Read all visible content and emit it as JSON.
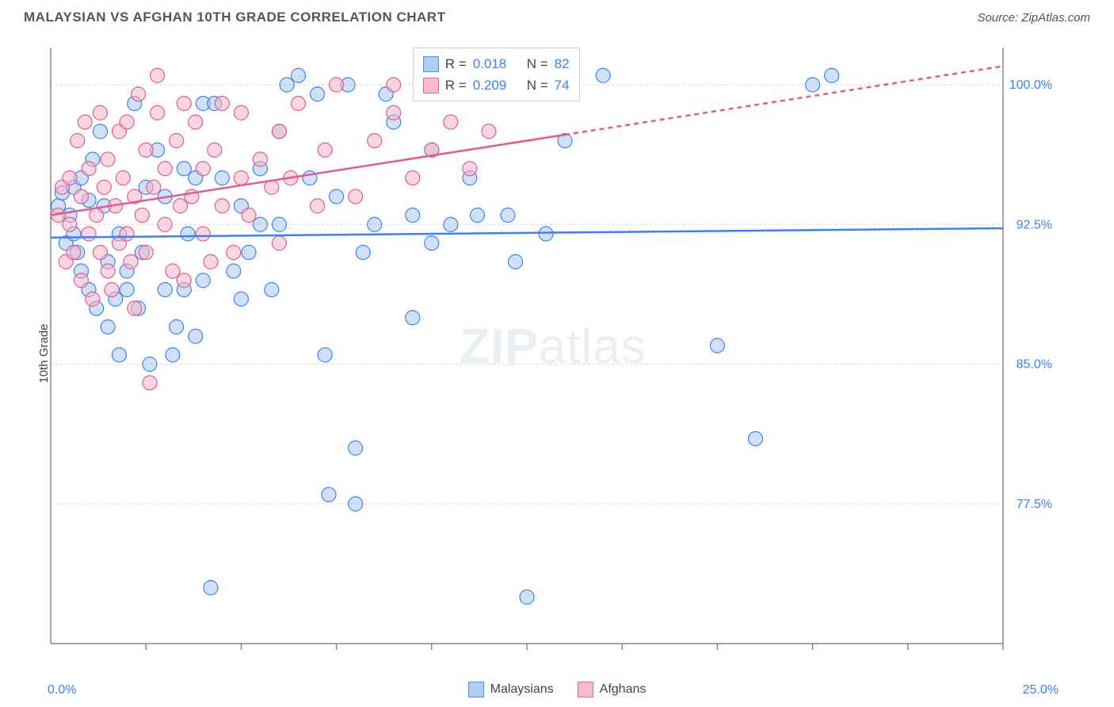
{
  "header": {
    "title": "MALAYSIAN VS AFGHAN 10TH GRADE CORRELATION CHART",
    "source": "Source: ZipAtlas.com"
  },
  "watermark": {
    "zip": "ZIP",
    "atlas": "atlas"
  },
  "ylabel": "10th Grade",
  "chart": {
    "type": "scatter",
    "xlim": [
      0,
      25
    ],
    "ylim": [
      70,
      102
    ],
    "xtick_start": "0.0%",
    "xtick_end": "25.0%",
    "xticks": [
      2.5,
      5,
      7.5,
      10,
      12.5,
      15,
      17.5,
      20,
      22.5,
      25
    ],
    "yticks": [
      {
        "v": 77.5,
        "label": "77.5%"
      },
      {
        "v": 85.0,
        "label": "85.0%"
      },
      {
        "v": 92.5,
        "label": "92.5%"
      },
      {
        "v": 100.0,
        "label": "100.0%"
      }
    ],
    "grid_color": "#d0d5db",
    "axis_color": "#888",
    "marker_radius": 9,
    "marker_opacity": 0.55,
    "line_width": 2.5,
    "series": [
      {
        "id": "malaysians",
        "label": "Malaysians",
        "fill": "#a7c7f0",
        "stroke": "#3b82f6",
        "trend": {
          "y_at_x0": 91.8,
          "y_at_x25": 92.3,
          "dash_from_x": null
        },
        "stats": {
          "R": "0.018",
          "N": "82"
        },
        "points": [
          [
            0.2,
            93.5
          ],
          [
            0.3,
            94.2
          ],
          [
            0.4,
            91.5
          ],
          [
            0.5,
            93.0
          ],
          [
            0.6,
            92.0
          ],
          [
            0.6,
            94.5
          ],
          [
            0.8,
            95.0
          ],
          [
            0.8,
            90.0
          ],
          [
            1.0,
            89.0
          ],
          [
            1.0,
            93.8
          ],
          [
            1.2,
            88.0
          ],
          [
            1.3,
            97.5
          ],
          [
            1.5,
            90.5
          ],
          [
            1.5,
            87.0
          ],
          [
            1.7,
            88.5
          ],
          [
            1.8,
            85.5
          ],
          [
            1.8,
            92.0
          ],
          [
            2.0,
            90.0
          ],
          [
            2.0,
            89.0
          ],
          [
            2.2,
            99.0
          ],
          [
            2.3,
            88.0
          ],
          [
            2.5,
            94.5
          ],
          [
            2.6,
            85.0
          ],
          [
            2.8,
            96.5
          ],
          [
            3.0,
            89.0
          ],
          [
            3.0,
            94.0
          ],
          [
            3.2,
            85.5
          ],
          [
            3.3,
            87.0
          ],
          [
            3.5,
            95.5
          ],
          [
            3.5,
            89.0
          ],
          [
            3.8,
            95.0
          ],
          [
            3.8,
            86.5
          ],
          [
            4.0,
            89.5
          ],
          [
            4.0,
            99.0
          ],
          [
            4.2,
            73.0
          ],
          [
            4.5,
            95.0
          ],
          [
            5.0,
            88.5
          ],
          [
            5.0,
            93.5
          ],
          [
            5.2,
            91.0
          ],
          [
            5.5,
            92.5
          ],
          [
            5.5,
            95.5
          ],
          [
            5.8,
            89.0
          ],
          [
            6.0,
            92.5
          ],
          [
            6.0,
            97.5
          ],
          [
            6.5,
            100.5
          ],
          [
            6.8,
            95.0
          ],
          [
            7.0,
            99.5
          ],
          [
            7.2,
            85.5
          ],
          [
            7.3,
            78.0
          ],
          [
            7.5,
            94.0
          ],
          [
            7.8,
            100.0
          ],
          [
            8.0,
            80.5
          ],
          [
            8.0,
            77.5
          ],
          [
            8.2,
            91.0
          ],
          [
            8.5,
            92.5
          ],
          [
            8.8,
            99.5
          ],
          [
            9.0,
            98.0
          ],
          [
            9.5,
            93.0
          ],
          [
            9.5,
            87.5
          ],
          [
            10.0,
            96.5
          ],
          [
            10.0,
            91.5
          ],
          [
            10.5,
            92.5
          ],
          [
            11.0,
            95.0
          ],
          [
            11.2,
            93.0
          ],
          [
            12.0,
            93.0
          ],
          [
            12.2,
            90.5
          ],
          [
            12.5,
            72.5
          ],
          [
            13.0,
            92.0
          ],
          [
            13.5,
            97.0
          ],
          [
            14.5,
            100.5
          ],
          [
            17.5,
            86.0
          ],
          [
            18.5,
            81.0
          ],
          [
            20.0,
            100.0
          ],
          [
            20.5,
            100.5
          ],
          [
            1.1,
            96.0
          ],
          [
            2.4,
            91.0
          ],
          [
            4.3,
            99.0
          ],
          [
            6.2,
            100.0
          ],
          [
            0.7,
            91.0
          ],
          [
            1.4,
            93.5
          ],
          [
            3.6,
            92.0
          ],
          [
            4.8,
            90.0
          ]
        ]
      },
      {
        "id": "afghans",
        "label": "Afghans",
        "fill": "#f5b5c6",
        "stroke": "#e55a8a",
        "trend": {
          "y_at_x0": 93.0,
          "y_at_x25": 101.0,
          "dash_from_x": 13.5
        },
        "stats": {
          "R": "0.209",
          "N": "74"
        },
        "points": [
          [
            0.2,
            93.0
          ],
          [
            0.3,
            94.5
          ],
          [
            0.4,
            90.5
          ],
          [
            0.5,
            92.5
          ],
          [
            0.5,
            95.0
          ],
          [
            0.6,
            91.0
          ],
          [
            0.7,
            97.0
          ],
          [
            0.8,
            89.5
          ],
          [
            0.8,
            94.0
          ],
          [
            0.9,
            98.0
          ],
          [
            1.0,
            92.0
          ],
          [
            1.0,
            95.5
          ],
          [
            1.1,
            88.5
          ],
          [
            1.2,
            93.0
          ],
          [
            1.3,
            98.5
          ],
          [
            1.3,
            91.0
          ],
          [
            1.4,
            94.5
          ],
          [
            1.5,
            90.0
          ],
          [
            1.5,
            96.0
          ],
          [
            1.6,
            89.0
          ],
          [
            1.7,
            93.5
          ],
          [
            1.8,
            97.5
          ],
          [
            1.8,
            91.5
          ],
          [
            1.9,
            95.0
          ],
          [
            2.0,
            92.0
          ],
          [
            2.0,
            98.0
          ],
          [
            2.1,
            90.5
          ],
          [
            2.2,
            94.0
          ],
          [
            2.2,
            88.0
          ],
          [
            2.3,
            99.5
          ],
          [
            2.4,
            93.0
          ],
          [
            2.5,
            96.5
          ],
          [
            2.5,
            91.0
          ],
          [
            2.6,
            84.0
          ],
          [
            2.7,
            94.5
          ],
          [
            2.8,
            98.5
          ],
          [
            2.8,
            100.5
          ],
          [
            3.0,
            92.5
          ],
          [
            3.0,
            95.5
          ],
          [
            3.2,
            90.0
          ],
          [
            3.3,
            97.0
          ],
          [
            3.4,
            93.5
          ],
          [
            3.5,
            99.0
          ],
          [
            3.5,
            89.5
          ],
          [
            3.7,
            94.0
          ],
          [
            3.8,
            98.0
          ],
          [
            4.0,
            92.0
          ],
          [
            4.0,
            95.5
          ],
          [
            4.2,
            90.5
          ],
          [
            4.3,
            96.5
          ],
          [
            4.5,
            93.5
          ],
          [
            4.5,
            99.0
          ],
          [
            4.8,
            91.0
          ],
          [
            5.0,
            95.0
          ],
          [
            5.0,
            98.5
          ],
          [
            5.2,
            93.0
          ],
          [
            5.5,
            96.0
          ],
          [
            5.8,
            94.5
          ],
          [
            6.0,
            97.5
          ],
          [
            6.0,
            91.5
          ],
          [
            6.3,
            95.0
          ],
          [
            6.5,
            99.0
          ],
          [
            7.0,
            93.5
          ],
          [
            7.2,
            96.5
          ],
          [
            7.5,
            100.0
          ],
          [
            8.0,
            94.0
          ],
          [
            8.5,
            97.0
          ],
          [
            9.0,
            98.5
          ],
          [
            9.0,
            100.0
          ],
          [
            9.5,
            95.0
          ],
          [
            10.0,
            96.5
          ],
          [
            10.5,
            98.0
          ],
          [
            11.0,
            95.5
          ],
          [
            11.5,
            97.5
          ]
        ]
      }
    ]
  },
  "legend": {
    "series1_label": "Malaysians",
    "series2_label": "Afghans"
  },
  "stats_labels": {
    "R": "R =",
    "N": "N ="
  }
}
